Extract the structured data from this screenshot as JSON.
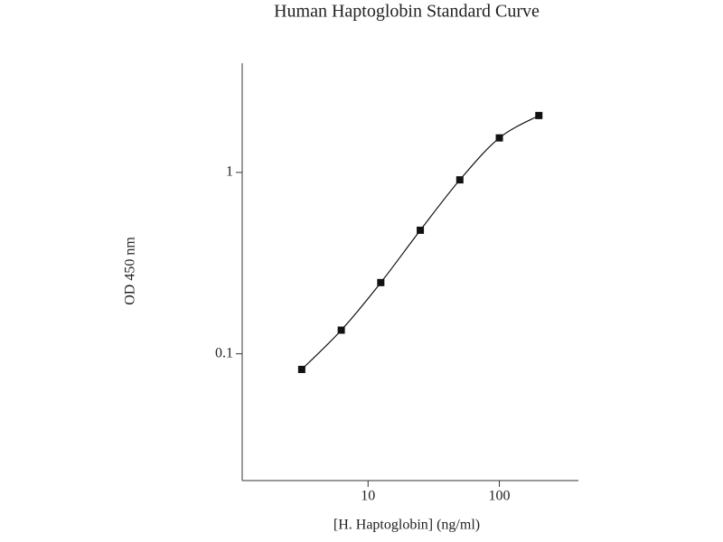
{
  "chart_data": {
    "type": "scatter",
    "title": "Human Haptoglobin Standard Curve",
    "x_label": "[H. Haptoglobin] (ng/ml)",
    "y_label": "OD 450 nm",
    "x": [
      3.125,
      6.25,
      12.5,
      25,
      50,
      100,
      200
    ],
    "values": [
      0.082,
      0.135,
      0.247,
      0.48,
      0.91,
      1.55,
      2.06
    ],
    "color": "#111",
    "xlim": [
      1.1,
      400
    ],
    "ylim": [
      0.02,
      4
    ],
    "xticks": [
      10,
      100
    ],
    "yticks": [
      0.1,
      1
    ],
    "xscale": "log",
    "yscale": "log",
    "fit_line": true
  }
}
